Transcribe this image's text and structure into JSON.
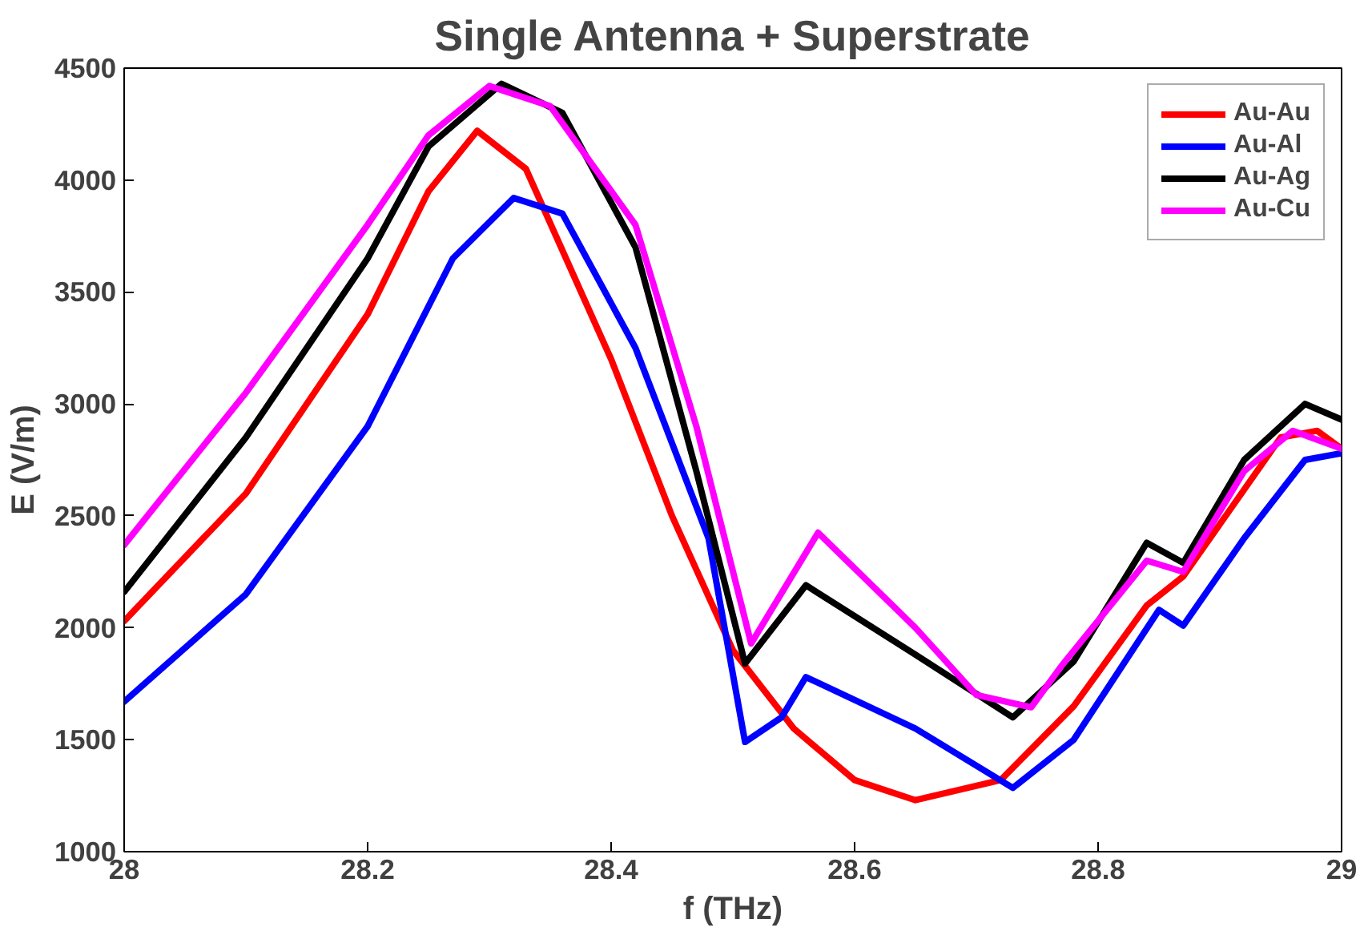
{
  "chart_data": {
    "type": "line",
    "title": "Single Antenna + Superstrate",
    "xlabel": "f (THz)",
    "ylabel": "E (V/m)",
    "xlim": [
      28,
      29
    ],
    "ylim": [
      1000,
      4500
    ],
    "xticks": [
      28,
      28.2,
      28.4,
      28.6,
      28.8,
      29
    ],
    "yticks": [
      1000,
      1500,
      2000,
      2500,
      3000,
      3500,
      4000,
      4500
    ],
    "grid": false,
    "legend": "top right",
    "line_style": "solid",
    "marker": "none",
    "series": [
      {
        "name": "Au-Au",
        "color": "#ff0000",
        "x": [
          28.0,
          28.1,
          28.2,
          28.25,
          28.29,
          28.33,
          28.4,
          28.45,
          28.5,
          28.55,
          28.6,
          28.65,
          28.72,
          28.78,
          28.84,
          28.87,
          28.95,
          28.98,
          29.0
        ],
        "values": [
          2030,
          2600,
          3400,
          3950,
          4220,
          4050,
          3200,
          2500,
          1900,
          1550,
          1320,
          1230,
          1320,
          1650,
          2100,
          2230,
          2850,
          2880,
          2800
        ]
      },
      {
        "name": "Au-Al",
        "color": "#0000ff",
        "x": [
          28.0,
          28.1,
          28.2,
          28.27,
          28.32,
          28.36,
          28.42,
          28.48,
          28.51,
          28.54,
          28.56,
          28.65,
          28.73,
          28.78,
          28.85,
          28.87,
          28.92,
          28.97,
          29.0
        ],
        "values": [
          1670,
          2150,
          2900,
          3650,
          3920,
          3850,
          3250,
          2400,
          1490,
          1600,
          1780,
          1550,
          1285,
          1500,
          2080,
          2010,
          2400,
          2750,
          2780
        ]
      },
      {
        "name": "Au-Ag",
        "color": "#000000",
        "x": [
          28.0,
          28.1,
          28.2,
          28.25,
          28.31,
          28.36,
          28.42,
          28.47,
          28.51,
          28.56,
          28.65,
          28.73,
          28.78,
          28.84,
          28.87,
          28.92,
          28.97,
          29.0
        ],
        "values": [
          2160,
          2850,
          3650,
          4150,
          4430,
          4300,
          3700,
          2700,
          1840,
          2190,
          1880,
          1600,
          1850,
          2380,
          2290,
          2750,
          3000,
          2930
        ]
      },
      {
        "name": "Au-Cu",
        "color": "#ff00ff",
        "x": [
          28.0,
          28.1,
          28.2,
          28.25,
          28.3,
          28.35,
          28.42,
          28.47,
          28.515,
          28.57,
          28.65,
          28.7,
          28.745,
          28.77,
          28.84,
          28.87,
          28.92,
          28.96,
          29.0
        ],
        "values": [
          2370,
          3050,
          3800,
          4200,
          4420,
          4330,
          3800,
          2900,
          1930,
          2425,
          2000,
          1700,
          1645,
          1830,
          2300,
          2250,
          2700,
          2880,
          2800
        ]
      }
    ]
  }
}
